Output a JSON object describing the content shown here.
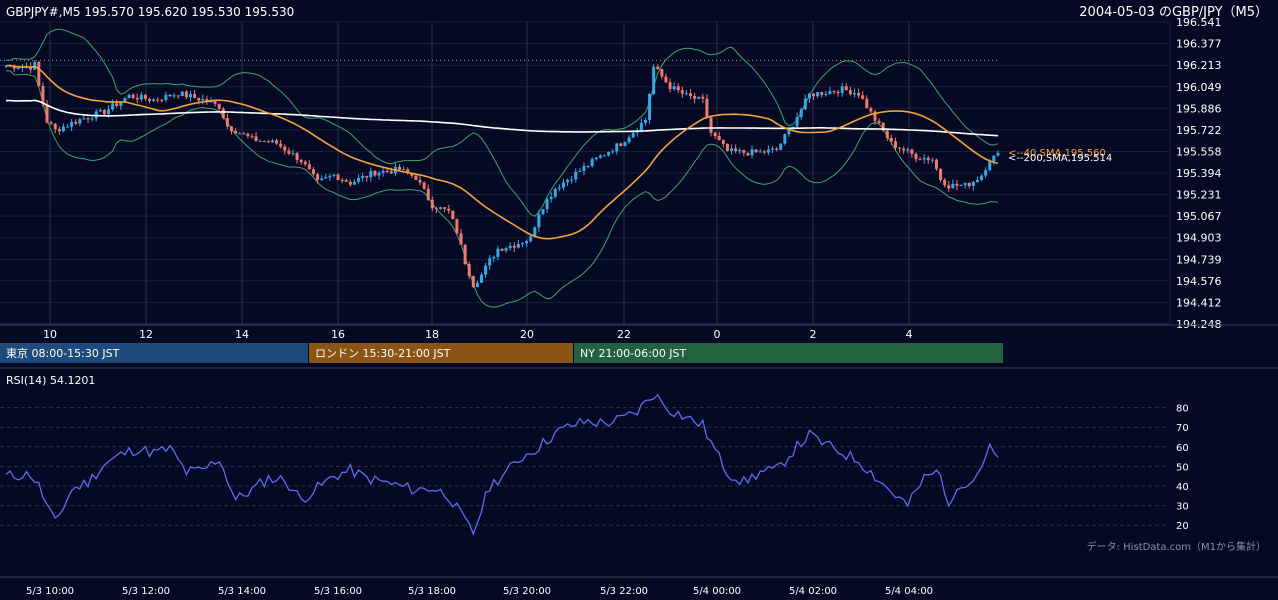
{
  "header": {
    "symbol_info": "GBPJPY#,M5 195.570 195.620 195.530 195.530",
    "chart_title": "2004-05-03 のGBP/JPY（M5）"
  },
  "sessions": [
    {
      "label": "東京 08:00-15:30 JST",
      "color": "#1f4a7a"
    },
    {
      "label": "ロンドン 15:30-21:00 JST",
      "color": "#8a5414"
    },
    {
      "label": "NY 21:00-06:00 JST",
      "color": "#24613f"
    }
  ],
  "rsi": {
    "label": "RSI(14) 54.1201",
    "ticks": [
      "80",
      "70",
      "60",
      "50",
      "40",
      "30",
      "20"
    ]
  },
  "source_note": "データ: HistData.com（M1から集計）",
  "colors": {
    "up": "#35a8e6",
    "down": "#f07a6c",
    "sma40": "#f2a33c",
    "sma200": "#ffffff",
    "bollinger": "#3fa56a",
    "rsi": "#5b6ef0"
  },
  "chart_data": [
    {
      "type": "candlestick",
      "title": "",
      "y_ticks": [
        "196.541",
        "196.377",
        "196.213",
        "196.049",
        "195.886",
        "195.722",
        "195.558",
        "195.394",
        "195.231",
        "195.067",
        "194.903",
        "194.739",
        "194.576",
        "194.412",
        "194.248"
      ],
      "x_ticks": [
        "10",
        "12",
        "14",
        "16",
        "18",
        "20",
        "22",
        "0",
        "2",
        "4"
      ],
      "ylim": [
        194.248,
        196.541
      ],
      "reference_line": 196.25,
      "indicators": [
        {
          "name": "40,SMA",
          "value_label": "<--40,SMA,195.560"
        },
        {
          "name": "200,SMA",
          "value_label": "<--200,SMA,195.514"
        },
        {
          "name": "Bollinger Bands"
        }
      ],
      "time_axis": [
        "5/3 10:00",
        "5/3 12:00",
        "5/3 14:00",
        "5/3 16:00",
        "5/3 18:00",
        "5/3 20:00",
        "5/3 22:00",
        "5/4 00:00",
        "5/4 02:00",
        "5/4 04:00"
      ],
      "approx_path": [
        [
          0,
          196.21
        ],
        [
          6,
          196.2
        ],
        [
          7,
          196.22
        ],
        [
          8,
          196.05
        ],
        [
          10,
          195.79
        ],
        [
          12,
          195.72
        ],
        [
          18,
          195.8
        ],
        [
          24,
          195.86
        ],
        [
          30,
          195.98
        ],
        [
          36,
          195.95
        ],
        [
          42,
          196.0
        ],
        [
          48,
          195.95
        ],
        [
          52,
          195.9
        ],
        [
          54,
          195.75
        ],
        [
          60,
          195.65
        ],
        [
          66,
          195.62
        ],
        [
          72,
          195.49
        ],
        [
          76,
          195.32
        ],
        [
          80,
          195.38
        ],
        [
          84,
          195.32
        ],
        [
          90,
          195.4
        ],
        [
          96,
          195.42
        ],
        [
          100,
          195.36
        ],
        [
          104,
          195.15
        ],
        [
          108,
          195.1
        ],
        [
          110,
          194.95
        ],
        [
          112,
          194.72
        ],
        [
          114,
          194.55
        ],
        [
          116,
          194.62
        ],
        [
          118,
          194.73
        ],
        [
          120,
          194.82
        ],
        [
          124,
          194.85
        ],
        [
          128,
          194.9
        ],
        [
          130,
          195.1
        ],
        [
          134,
          195.28
        ],
        [
          138,
          195.37
        ],
        [
          144,
          195.5
        ],
        [
          150,
          195.62
        ],
        [
          156,
          195.8
        ],
        [
          158,
          196.2
        ],
        [
          162,
          196.05
        ],
        [
          166,
          195.98
        ],
        [
          170,
          195.94
        ],
        [
          172,
          195.7
        ],
        [
          176,
          195.56
        ],
        [
          180,
          195.55
        ],
        [
          184,
          195.55
        ],
        [
          188,
          195.57
        ],
        [
          192,
          195.77
        ],
        [
          196,
          195.99
        ],
        [
          200,
          196.01
        ],
        [
          204,
          196.03
        ],
        [
          208,
          196.0
        ],
        [
          212,
          195.8
        ],
        [
          216,
          195.62
        ],
        [
          222,
          195.52
        ],
        [
          226,
          195.5
        ],
        [
          228,
          195.35
        ],
        [
          230,
          195.3
        ],
        [
          234,
          195.3
        ],
        [
          236,
          195.33
        ],
        [
          238,
          195.38
        ],
        [
          240,
          195.5
        ],
        [
          242,
          195.53
        ]
      ],
      "rsi_series": {
        "name": "RSI(14)",
        "approx_path": [
          [
            0,
            45
          ],
          [
            6,
            46
          ],
          [
            8,
            40
          ],
          [
            10,
            30
          ],
          [
            12,
            21
          ],
          [
            16,
            38
          ],
          [
            20,
            42
          ],
          [
            24,
            51
          ],
          [
            28,
            56
          ],
          [
            32,
            59
          ],
          [
            36,
            57
          ],
          [
            40,
            59
          ],
          [
            44,
            47
          ],
          [
            48,
            48
          ],
          [
            52,
            54
          ],
          [
            56,
            33
          ],
          [
            60,
            38
          ],
          [
            64,
            44
          ],
          [
            68,
            43
          ],
          [
            72,
            33
          ],
          [
            76,
            39
          ],
          [
            80,
            45
          ],
          [
            84,
            48
          ],
          [
            88,
            44
          ],
          [
            92,
            42
          ],
          [
            96,
            40
          ],
          [
            100,
            38
          ],
          [
            104,
            39
          ],
          [
            108,
            35
          ],
          [
            112,
            22
          ],
          [
            114,
            16
          ],
          [
            118,
            40
          ],
          [
            122,
            47
          ],
          [
            126,
            55
          ],
          [
            130,
            60
          ],
          [
            134,
            67
          ],
          [
            138,
            71
          ],
          [
            142,
            73
          ],
          [
            146,
            72
          ],
          [
            150,
            74
          ],
          [
            154,
            78
          ],
          [
            158,
            87
          ],
          [
            162,
            79
          ],
          [
            166,
            75
          ],
          [
            170,
            71
          ],
          [
            172,
            62
          ],
          [
            176,
            47
          ],
          [
            180,
            42
          ],
          [
            184,
            47
          ],
          [
            188,
            48
          ],
          [
            192,
            58
          ],
          [
            196,
            66
          ],
          [
            200,
            61
          ],
          [
            204,
            57
          ],
          [
            208,
            53
          ],
          [
            212,
            45
          ],
          [
            216,
            37
          ],
          [
            220,
            30
          ],
          [
            224,
            44
          ],
          [
            228,
            48
          ],
          [
            230,
            27
          ],
          [
            232,
            41
          ],
          [
            236,
            43
          ],
          [
            240,
            59
          ],
          [
            242,
            54
          ]
        ]
      }
    }
  ]
}
